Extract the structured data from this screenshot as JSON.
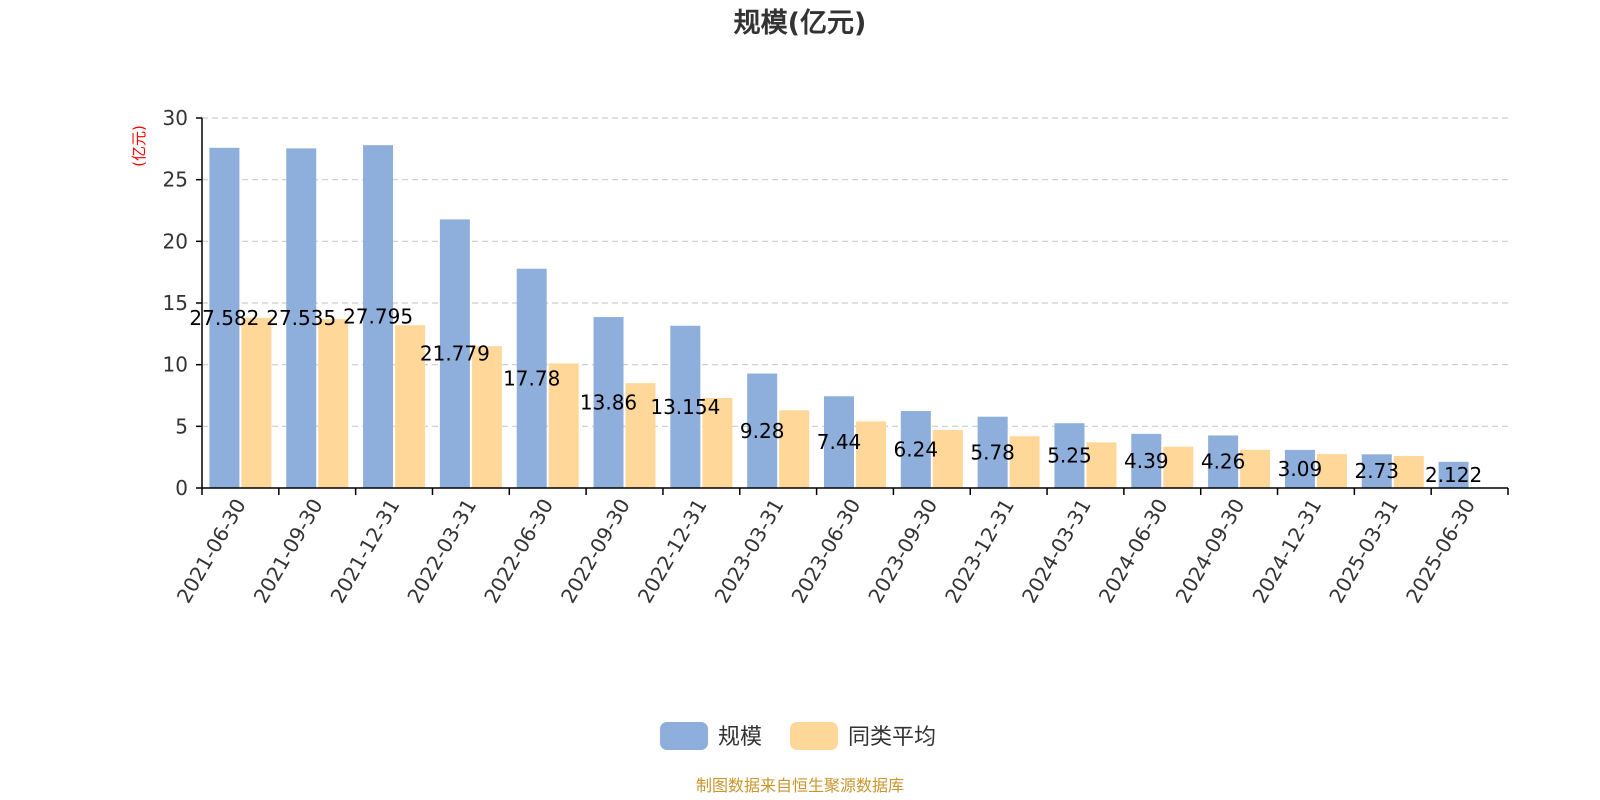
{
  "chart_data": {
    "type": "bar",
    "title": "规模(亿元)",
    "ylabel": "(亿元)",
    "ylim": [
      0,
      30
    ],
    "yticks": [
      0,
      5,
      10,
      15,
      20,
      25,
      30
    ],
    "grid": true,
    "legend_position": "bottom-center",
    "categories": [
      "2021-06-30",
      "2021-09-30",
      "2021-12-31",
      "2022-03-31",
      "2022-06-30",
      "2022-09-30",
      "2022-12-31",
      "2023-03-31",
      "2023-06-30",
      "2023-09-30",
      "2023-12-31",
      "2024-03-31",
      "2024-06-30",
      "2024-09-30",
      "2024-12-31",
      "2025-03-31",
      "2025-06-30"
    ],
    "series": [
      {
        "name": "规模",
        "color": "#8eaedb",
        "values": [
          27.582,
          27.535,
          27.795,
          21.779,
          17.78,
          13.86,
          13.154,
          9.28,
          7.44,
          6.24,
          5.78,
          5.25,
          4.39,
          4.26,
          3.09,
          2.73,
          2.122
        ],
        "labels": [
          "27.582",
          "27.535",
          "27.795",
          "21.779",
          "17.78",
          "13.86",
          "13.154",
          "9.28",
          "7.44",
          "6.24",
          "5.78",
          "5.25",
          "4.39",
          "4.26",
          "3.09",
          "2.73",
          "2.122"
        ]
      },
      {
        "name": "同类平均",
        "color": "#ffd899",
        "values": [
          13.8,
          13.7,
          13.2,
          11.5,
          10.1,
          8.5,
          7.3,
          6.3,
          5.4,
          4.7,
          4.2,
          3.7,
          3.35,
          3.1,
          2.75,
          2.6,
          null
        ]
      }
    ],
    "footer": "制图数据来自恒生聚源数据库",
    "colors": {
      "ylabel": "#ff0000",
      "footer": "#c8962d",
      "grid": "#cccccc",
      "axis": "#000000"
    }
  }
}
